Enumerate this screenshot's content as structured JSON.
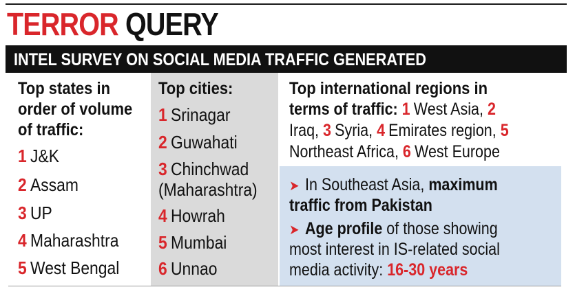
{
  "headline": {
    "red": "TERROR",
    "black": "QUERY"
  },
  "banner": "INTEL SURVEY ON SOCIAL MEDIA TRAFFIC GENERATED",
  "states": {
    "heading": [
      "Top states in",
      "order of volume",
      "of traffic:"
    ],
    "items": [
      {
        "num": "1",
        "name": "J&K"
      },
      {
        "num": "2",
        "name": "Assam"
      },
      {
        "num": "3",
        "name": "UP"
      },
      {
        "num": "4",
        "name": "Maharashtra"
      },
      {
        "num": "5",
        "name": "West Bengal"
      }
    ]
  },
  "cities": {
    "heading": "Top cities:",
    "items": [
      {
        "num": "1",
        "name": "Srinagar"
      },
      {
        "num": "2",
        "name": "Guwahati"
      },
      {
        "num": "3",
        "name": "Chinchwad"
      },
      {
        "num": "",
        "name": "(Maharashtra)"
      },
      {
        "num": "4",
        "name": "Howrah"
      },
      {
        "num": "5",
        "name": "Mumbai"
      },
      {
        "num": "6",
        "name": "Unnao"
      }
    ]
  },
  "international": {
    "heading1": "Top international regions in",
    "heading2": "terms of traffic:",
    "r1n": "1",
    "r1": "West Asia,",
    "r2n": "2",
    "r2": "Iraq,",
    "r3n": "3",
    "r3": "Syria,",
    "r4n": "4",
    "r4": "Emirates region,",
    "r5n": "5",
    "r5": "Northeast Africa,",
    "r6n": "6",
    "r6": "West Europe"
  },
  "notes": {
    "arrow_glyph": "➤",
    "n1_plain": "In Southeast Asia,",
    "n1_bold_a": "maximum",
    "n1_bold_b": "traffic from Pakistan",
    "n2_bold": "Age profile",
    "n2_plain_a": "of those showing",
    "n2_plain_b": "most interest in IS-related social",
    "n2_plain_c": "media activity:",
    "n2_value": "16-30 years"
  }
}
